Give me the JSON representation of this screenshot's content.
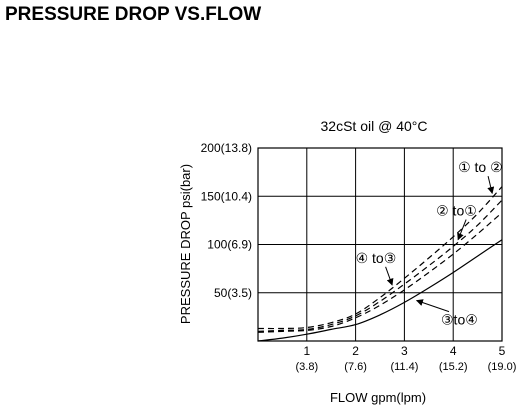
{
  "heading": "PRESSURE DROP VS.FLOW",
  "chart_data": {
    "type": "line",
    "title": "32cSt oil @ 40°C",
    "xlabel": "FLOW gpm(lpm)",
    "ylabel": "PRESSURE DROP psi(bar)",
    "xlim": [
      0,
      5
    ],
    "ylim": [
      0,
      200
    ],
    "grid": true,
    "x_ticks": [
      {
        "value": 1,
        "label": "1",
        "sublabel": "(3.8)"
      },
      {
        "value": 2,
        "label": "2",
        "sublabel": "(7.6)"
      },
      {
        "value": 3,
        "label": "3",
        "sublabel": "(11.4)"
      },
      {
        "value": 4,
        "label": "4",
        "sublabel": "(15.2)"
      },
      {
        "value": 5,
        "label": "5",
        "sublabel": "(19.0)"
      }
    ],
    "y_ticks": [
      {
        "value": 50,
        "label": "50(3.5)"
      },
      {
        "value": 100,
        "label": "100(6.9)"
      },
      {
        "value": 150,
        "label": "150(10.4)"
      },
      {
        "value": 200,
        "label": "200(13.8)"
      }
    ],
    "series": [
      {
        "name": "① to ②",
        "style": "dashed",
        "color": "#000000",
        "x": [
          0,
          0.5,
          1,
          1.5,
          2,
          2.5,
          3,
          3.5,
          4,
          4.5,
          5
        ],
        "y": [
          13,
          13,
          14,
          19,
          28,
          45,
          65,
          86,
          108,
          132,
          160
        ],
        "label_at": [
          4.1,
          175
        ],
        "arrow_to": [
          4.8,
          153
        ]
      },
      {
        "name": "② to①",
        "style": "dashed",
        "color": "#000000",
        "x": [
          0,
          0.5,
          1,
          1.5,
          2,
          2.5,
          3,
          3.5,
          4,
          4.5,
          5
        ],
        "y": [
          10,
          11,
          12,
          17,
          26,
          41,
          59,
          78,
          98,
          120,
          146
        ],
        "label_at": [
          3.65,
          130
        ],
        "arrow_to": [
          4.1,
          105
        ]
      },
      {
        "name": "④ to③",
        "style": "dashed",
        "color": "#000000",
        "x": [
          0,
          0.5,
          1,
          1.5,
          2,
          2.5,
          3,
          3.5,
          4,
          4.5,
          5
        ],
        "y": [
          9,
          10,
          11,
          15,
          24,
          37,
          53,
          71,
          90,
          111,
          133
        ],
        "label_at": [
          2.0,
          81
        ],
        "arrow_to": [
          2.75,
          58
        ]
      },
      {
        "name": "③to④",
        "style": "solid",
        "color": "#000000",
        "x": [
          0,
          0.5,
          1,
          1.5,
          2,
          2.5,
          3,
          3.5,
          4,
          4.5,
          5
        ],
        "y": [
          0,
          3,
          7,
          12,
          17,
          27,
          40,
          55,
          71,
          88,
          105
        ],
        "label_at": [
          3.75,
          17
        ],
        "arrow_to": [
          3.25,
          42
        ]
      }
    ]
  }
}
